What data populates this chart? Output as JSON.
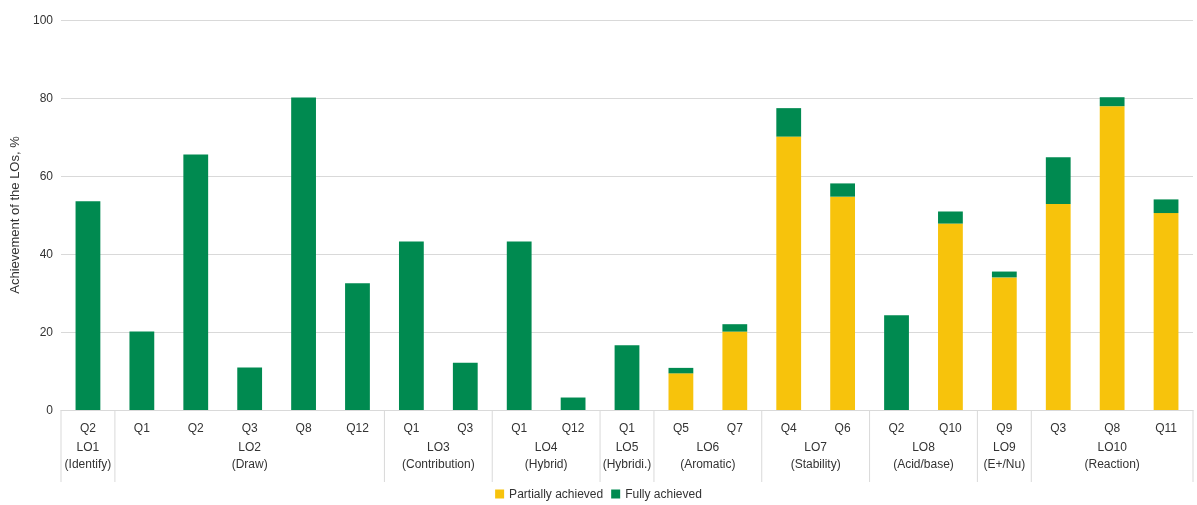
{
  "chart_data": {
    "type": "bar",
    "stacked": true,
    "ylabel": "Achievement of the LOs, %",
    "categories": [
      "Q2",
      "Q1",
      "Q2",
      "Q3",
      "Q8",
      "Q12",
      "Q1",
      "Q3",
      "Q1",
      "Q12",
      "Q1",
      "Q5",
      "Q7",
      "Q4",
      "Q6",
      "Q2",
      "Q10",
      "Q9",
      "Q3",
      "Q8",
      "Q11"
    ],
    "series": [
      {
        "name": "Partially achieved",
        "color": "#f7c30c",
        "values": [
          null,
          null,
          null,
          null,
          null,
          null,
          null,
          null,
          null,
          null,
          null,
          9.4,
          20.1,
          70.1,
          54.7,
          null,
          47.8,
          34.0,
          52.8,
          77.9,
          50.5
        ]
      },
      {
        "name": "Fully achieved",
        "color": "#008a50",
        "values": [
          53.5,
          20.1,
          65.5,
          10.9,
          80.1,
          32.5,
          43.2,
          12.1,
          43.2,
          3.2,
          16.6,
          1.4,
          1.9,
          7.3,
          3.4,
          24.3,
          3.1,
          1.5,
          12.0,
          2.3,
          3.5
        ]
      }
    ],
    "annotations": [
      "LO1\n(Identify)",
      "LO2\n(Draw)",
      "LO3\n(Contribution)",
      "LO4\n(Hybrid)",
      "LO5\n(Hybridi.)",
      "LO6\n(Aromatic)",
      "LO7\n(Stability)",
      "LO8\n(Acid/base)",
      "LO9\n(E+/Nu)",
      "LO10\n(Reaction)"
    ],
    "ylim": [
      0,
      100
    ],
    "yticks": [
      0,
      20,
      40,
      60,
      80,
      100
    ],
    "grid": "y",
    "legend": "bottom"
  }
}
